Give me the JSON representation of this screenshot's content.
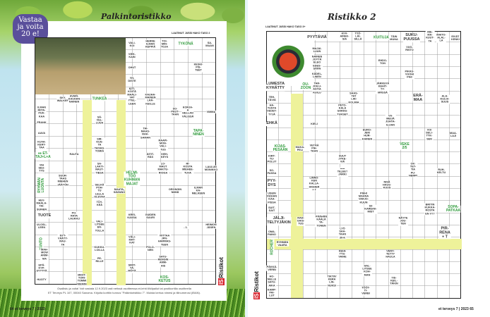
{
  "left_page": {
    "badge": "Vastaa\nja voita\n20 e!",
    "title": "Palkintoristikko",
    "author": "LAATINUT JUSSI HAKO TASO 2",
    "brand": "Ristikot",
    "footer_1": "Osallistu ja voita! Voit vastata 12.9.2023 asti netissä osoitteessa et-lehti.fi/kilpailut tai postikortilla osoitteella",
    "footer_2": "ET Terveys PL 107, 00040 Sanoma. Kirjoita korttiin tunnus \"Palkintoristikko 7\". Muista kertoa nimesi ja tilinumerosi (IBAN).",
    "page_number": "64  et terveys 7 | 2023",
    "clues": [
      {
        "text": "VALI-\nKOI"
      },
      {
        "text": "HERNE\nILMAN\nKEPPIÄ"
      },
      {
        "text": "TOI-\nMIN-\nTOJA"
      },
      {
        "text": "TYKÖNÄ",
        "highlight": true
      },
      {
        "text": "SA-\nMAAN"
      },
      {
        "text": "VIEK-\nKAIN"
      },
      {
        "text": "OHUT"
      },
      {
        "text": "YH-\nDISTE"
      },
      {
        "text": "KITI-\nKÖITÄ"
      },
      {
        "text": "KESKI-\nPIS-\nTEET"
      },
      {
        "text": "SKY-\nWALKER"
      },
      {
        "text": "AVAIN-\nKAUHAN\nNAINEN"
      },
      {
        "text": "TUNKEA",
        "highlight": true
      },
      {
        "text": "MAALI-\nVAT\nYTEL-\nLEEN"
      },
      {
        "text": "KAUHA-\nMAINEN\nLÄÄ-\nKEILLE"
      },
      {
        "text": "ILMAN\nRIITA-\nPUK-\nKAA"
      },
      {
        "text": "SO-\nPEUT-\nTAAN"
      },
      {
        "text": "KORJA-\nA\nHELLAN\nVÄLISSÄ"
      },
      {
        "text": "VIMMA"
      },
      {
        "text": "FRANK"
      },
      {
        "text": "SÄ-\nVEL-\nLUUA"
      },
      {
        "text": "AAVA"
      },
      {
        "text": "TAI-\nMAAS-\nRAK-\nSAMAN"
      },
      {
        "text": "TAPA-\nNINEN",
        "highlight": true
      },
      {
        "text": "KUVA-\nKERT-\nTAA"
      },
      {
        "text": "SIR-\nKUS-\nTA\nTAIVAS-\nTOMIA"
      },
      {
        "text": "RAAPI-\nMON-\nVALI-\nTUS"
      },
      {
        "text": "♦♦ ET-\nTAJ+L+A",
        "highlight": true
      },
      {
        "text": "RAUTA"
      },
      {
        "text": "ÄITIT-\nRÄS"
      },
      {
        "text": "VIEH-\nKEYS"
      },
      {
        "text": "VIH\nSEU-\nTYS"
      },
      {
        "text": "SA-\nLAKTI-\nRAUT-\nTIESA"
      },
      {
        "text": "LO-\nMAUT\nMAKTU-\nRIOGA"
      },
      {
        "text": "RI-\nKOSTA\nMIEHEE-\nTUVA"
      },
      {
        "text": "LAULUN\nMONIKKO"
      },
      {
        "text": "RYHMÄN\nLUONTA",
        "highlight": true
      },
      {
        "text": "SUUR-\nTAAS\nMIEHEN\nJÄÄTÖN"
      },
      {
        "text": "HELMI-\nTÖÖ\nKUHMAN\nMAJAT",
        "highlight": true
      },
      {
        "text": "SELKÄ\nPOH-\nTU\nLELLA\nOLEVAA"
      },
      {
        "text": "MAATA-\nSÄÄNNÖ"
      },
      {
        "text": "ORONGIN\nNIMIÄ"
      },
      {
        "text": "ILMAN\nKA-\nMELKEEN"
      },
      {
        "text": "TÖY-\nKEÄ"
      },
      {
        "text": "HEV-\nMAALA-\nTAI-\nSUINEN"
      },
      {
        "text": "TUOTE",
        "big": true
      },
      {
        "text": "PO-\nRATA\nLAUKKU"
      },
      {
        "text": "KREI-\nKASSA"
      },
      {
        "text": "GUIDEN\nSUURI"
      },
      {
        "text": "ULOSL-\nLEEN"
      },
      {
        "text": "VALI-\nLITSEE\nEN-\nTOLLA"
      },
      {
        "text": "- 1."
      },
      {
        "text": "HEIMON\nJÄSEN"
      },
      {
        "text": "KUNTO",
        "highlight": true
      },
      {
        "text": "NYT-\nVÄÄTY-\nRAU-\nTA"
      },
      {
        "text": "VÄLI-\nMAT-\nKAT"
      },
      {
        "text": "VIITTAA\nJPN-\nHAMMAS-\nTEEN"
      },
      {
        "text": "KUKKU-\nLOILLA"
      },
      {
        "text": "POLO-\nNEN"
      },
      {
        "text": "MAH-\nMOW\nANIM-\nMA"
      },
      {
        "text": "PE-\nRILLE"
      },
      {
        "text": "SATU-\nRENGIN\nAMM-\nAIS"
      },
      {
        "text": "EPÄ-\nKYP-\nSYYTTÄ"
      },
      {
        "text": "SIRIT-\nTÄ-\nMÖTÄ"
      },
      {
        "text": "HUOTY"
      },
      {
        "text": "MIOIT-\nTORI-\nTOMMI\nNIEMIN"
      },
      {
        "text": "KOS-\nKETUS",
        "highlight": true
      }
    ]
  },
  "right_page": {
    "title": "Ristikko 2",
    "author": "LAATINUT JUSSI HAKO TASO 3+",
    "brand": "Ristikot",
    "page_number": "et terveys 7 | 2023   65",
    "clues": [
      {
        "text": "PYYTÄVIÄ",
        "big": true
      },
      {
        "text": "KIVI-\nAINEK-\nSIA"
      },
      {
        "text": "TYÖ-\nLÄI-\nSILLÄ"
      },
      {
        "text": "KUITUJA",
        "highlight": true
      },
      {
        "text": "TÄIN\nMUNA"
      },
      {
        "text": "SUKU-\nPUUSSA",
        "big": true
      },
      {
        "text": "RIE-\nMA-\nKUUT-\nTA"
      },
      {
        "text": "MAITO-\nALAL-\nLA"
      },
      {
        "text": "EIVÄT\nKENKI"
      },
      {
        "text": "MAJAI-\nLUUN"
      },
      {
        "text": "NAINEN\nJOYTÄ\nELEO\nEDES-\nSÄÄN"
      },
      {
        "text": "KÄDEL-\nLINEN"
      },
      {
        "text": "TAR-\nJOILU-\nASTIA\nKUILU"
      },
      {
        "text": "VUO-\nRISTO"
      },
      {
        "text": "EHDO-\nTON"
      },
      {
        "text": "PIKKU-\nVUOHI\nPIHI"
      },
      {
        "text": "JÄRKEVÄ\nKEHIT-\nTY-\nMÄSSÄ"
      },
      {
        "text": "LUMESTA\nKYHÄTTY",
        "big": true
      },
      {
        "text": "OU-\nZOON",
        "highlight": true
      },
      {
        "text": "TEH-\nTÄVIÄ"
      },
      {
        "text": "SAAS-\nTAT\nLIKI\nKOLMIA"
      },
      {
        "text": "ERÄ-\nMAA",
        "big": true
      },
      {
        "text": "ALA-\nKULOI-\nSUUS"
      },
      {
        "text": "HA-\nTUSTA\nVEDET-\nTYJÄ"
      },
      {
        "text": "PETO-\nKALA\nSARAS-\nTUKSET"
      },
      {
        "text": "EHKÄ",
        "big": true
      },
      {
        "text": "KIELI"
      },
      {
        "text": "VII-\nMEIJÄ\nJUHTA-\nILIJAN"
      },
      {
        "text": "EURO-\nJEN/\nHUR-\nKAINEN"
      },
      {
        "text": "VOI\nSELI-\nTYK-\nSEN"
      },
      {
        "text": "MAA-\nLAJI"
      },
      {
        "text": "KIJAS-\nPESÄÄN",
        "highlight": true
      },
      {
        "text": "MAKA-\nPELI"
      },
      {
        "text": "VETÄÄ\nPIH-\nTAAN"
      },
      {
        "text": "VEKE\n2/5",
        "highlight": true
      },
      {
        "text": "KIRT-\nTU-\nPOLUT"
      },
      {
        "text": "SUUT\nJYKE-\nVIÄ"
      },
      {
        "text": "OK-\nTET-\nTIA\nPU-\nNEMPI"
      },
      {
        "text": "RUH-\nKELTU"
      },
      {
        "text": "SO-\nPASSA"
      },
      {
        "text": "•••••\nTELEE?\nJÄRKI"
      },
      {
        "text": "PYY-\nDYS",
        "big": true
      },
      {
        "text": "LINNO-\nKEN\nKALLA-\nHIGHER\n+ T"
      },
      {
        "text": "NISÄ\nHAUS-\nKUUS"
      },
      {
        "text": "USEIN\nVESIAN\nKAA-\nPISSA"
      },
      {
        "text": "PIEHI\nMAANA\nVARJO-\nKUUN"
      },
      {
        "text": "SUIT-\nSAIT"
      },
      {
        "text": "S9\nKAREAK-\nMIST"
      },
      {
        "text": "BRITIN\nKUKKA-\nROSTA\nEN V??"
      },
      {
        "text": "SOPA-\nPATKAA",
        "highlight": true
      },
      {
        "text": "JÄLJI-\nTELTYJÄKIN",
        "big": true
      },
      {
        "text": "RAH-\nGAIS-\nTUS"
      },
      {
        "text": "PÄÄHÄN\nKÄÄLÄ\nTA-\nTONEN"
      },
      {
        "text": "NÄYTE\nJOU-\nTEN"
      },
      {
        "text": "OMA-\nPAINO"
      },
      {
        "text": "LYÖ\nSAA-\nTAAN\n30-K"
      },
      {
        "text": "PIR-\nRENA\n+ T",
        "big": true
      },
      {
        "text": "ROCHER",
        "highlight": true
      },
      {
        "text": "RYHMÄN\nVAARA"
      },
      {
        "text": "KEHI-\nTYS-\nVAIHE"
      },
      {
        "text": "VENY-\nTETTY\nHAULA"
      },
      {
        "text": "PÄKKÄ-\nVERBI"
      },
      {
        "text": "HAL-\nLITSEE\nKOH-\nMAN"
      },
      {
        "text": "HO-\nNELLE\nSATU-\nAIKA"
      },
      {
        "text": "TIKTIIV\nKERA\nLIN-\nNUKSI"
      },
      {
        "text": "TIS-\nKEIL-\nTÄKIN"
      },
      {
        "text": "KAMP-\nPAI-\nLUT"
      },
      {
        "text": "TÖÖT-\nTI-\nVERBI"
      }
    ]
  }
}
